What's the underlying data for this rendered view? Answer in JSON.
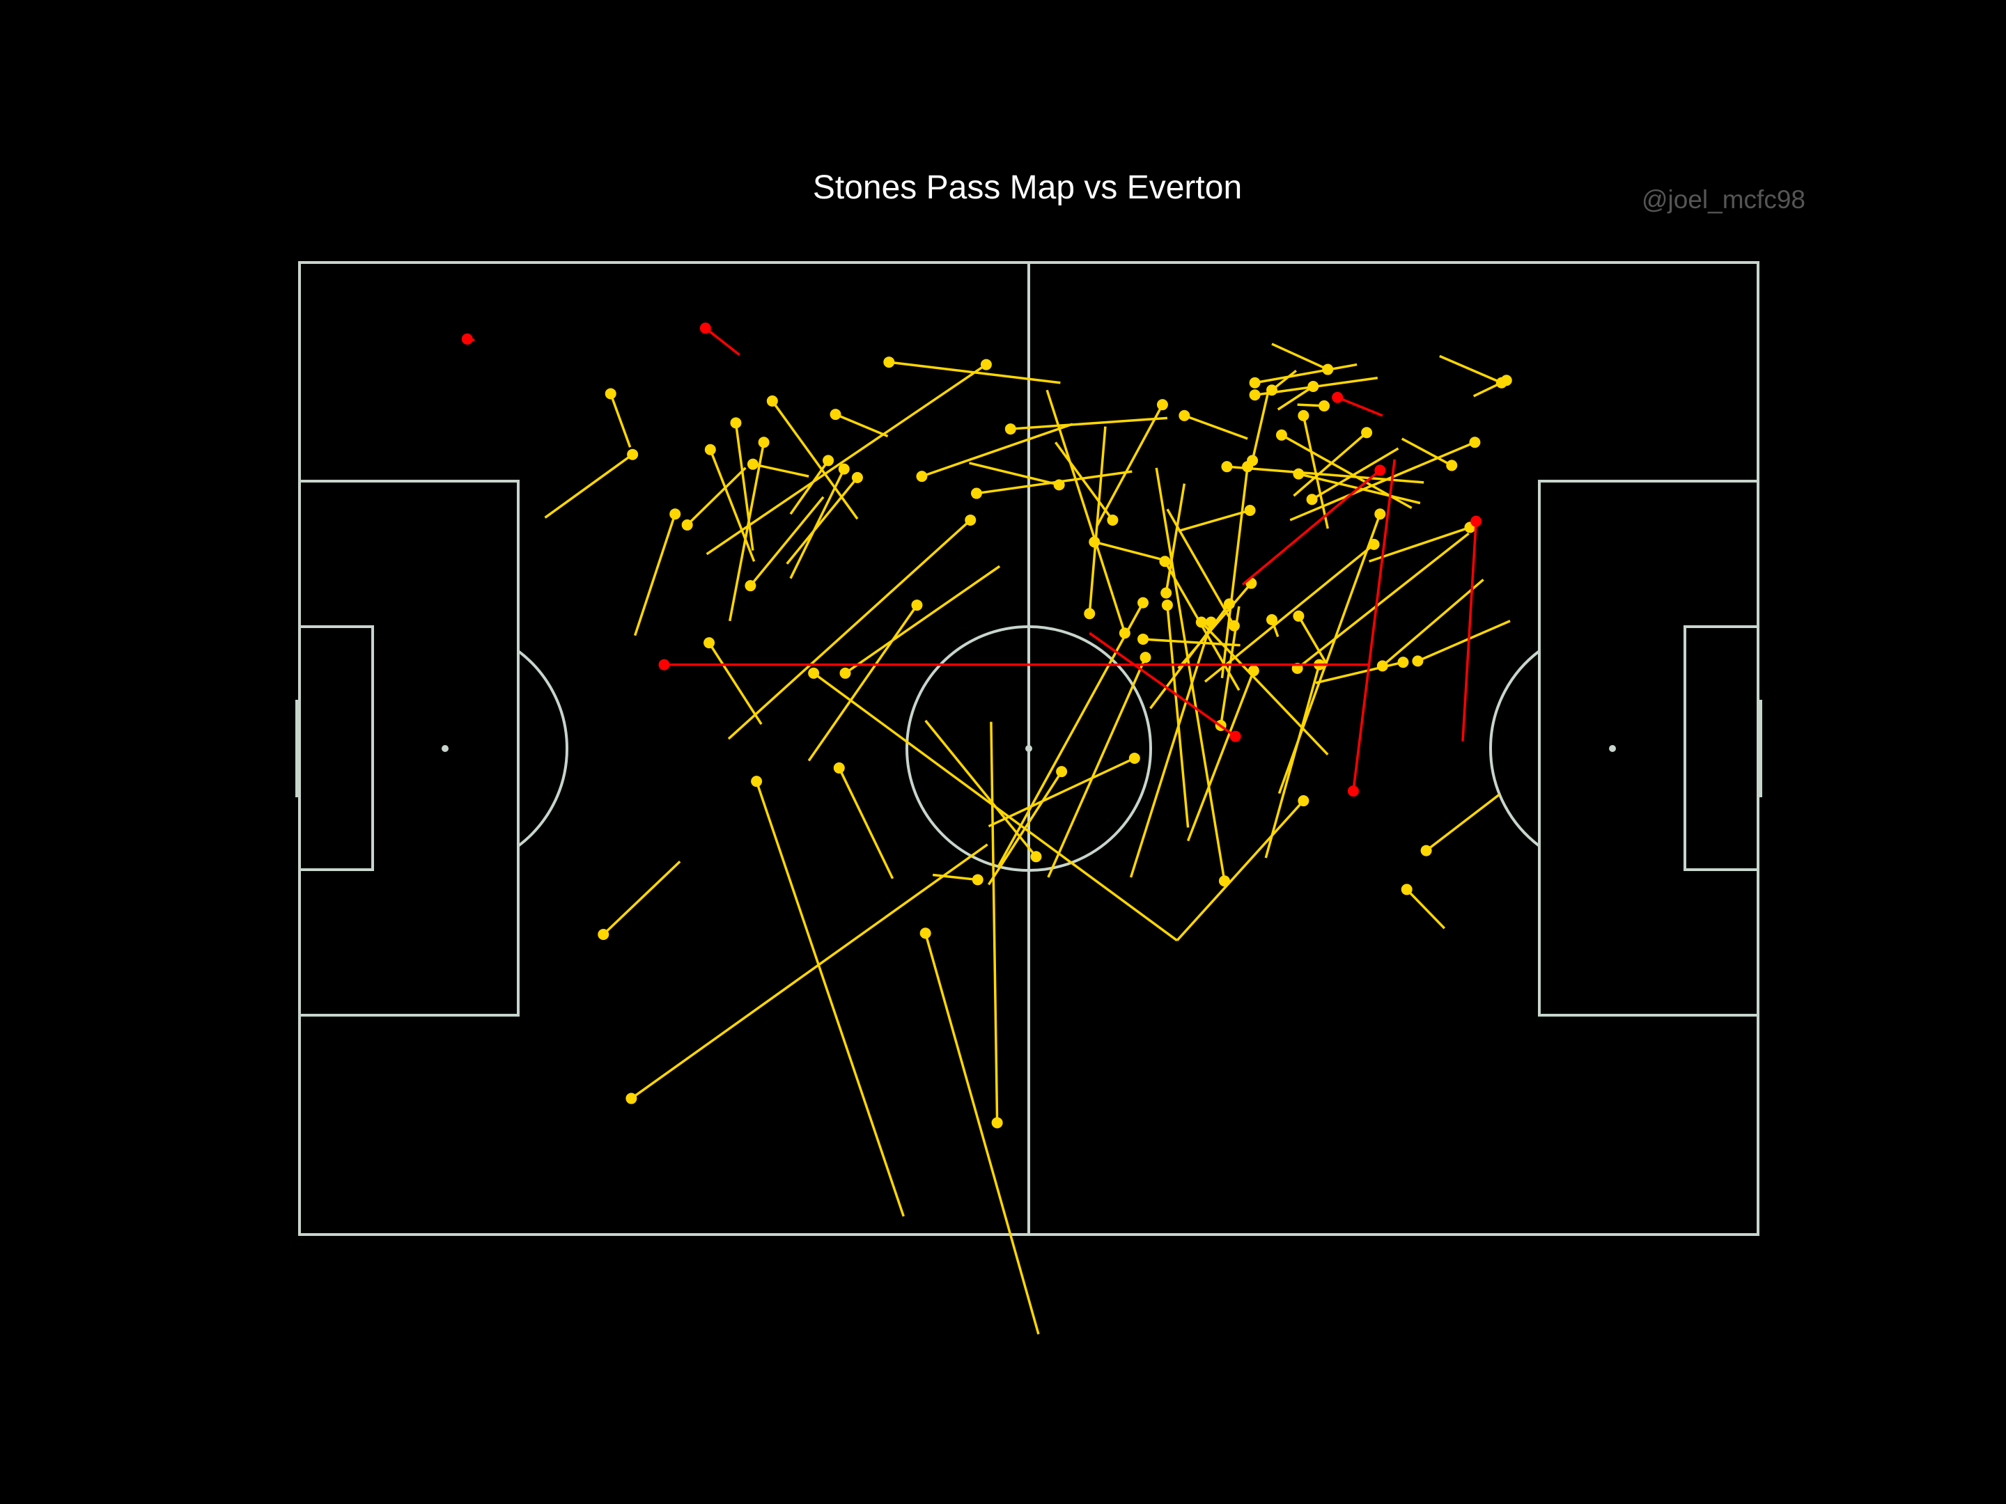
{
  "header": {
    "title": "Stones Pass Map vs Everton",
    "credit": "@joel_mcfc98"
  },
  "colors": {
    "background": "#000000",
    "pitch_lines": "#c7d5cc",
    "completed": "#FFD700",
    "incomplete": "#FF0000"
  },
  "chart_data": {
    "type": "scatter",
    "pitch": {
      "type": "statsbomb",
      "x_range": [
        0,
        120
      ],
      "y_range": [
        0,
        80
      ],
      "orientation": "horizontal"
    },
    "title": "Stones Pass Map vs Everton",
    "grid": false,
    "series": [
      {
        "outcome": "completed",
        "color": "#FFD700",
        "passes": [
          [
            37.6,
            42.7,
            49.7,
            78.5
          ],
          [
            27.3,
            68.8,
            56.6,
            47.9
          ],
          [
            42.3,
            33.8,
            72.2,
            55.8
          ],
          [
            51.5,
            55.2,
            60.8,
            88.2
          ],
          [
            25.0,
            55.3,
            31.3,
            49.3
          ],
          [
            57.4,
            70.8,
            56.9,
            37.8
          ],
          [
            67.9,
            30.5,
            61.5,
            10.5
          ],
          [
            65.0,
            28.9,
            66.3,
            13.5
          ],
          [
            76.1,
            50.9,
            70.5,
            16.9
          ],
          [
            75.8,
            38.1,
            77.3,
            28.3
          ],
          [
            74.2,
            29.6,
            84.6,
            40.5
          ],
          [
            83.9,
            33.1,
            79.5,
            49.0
          ],
          [
            69.6,
            32.5,
            61.6,
            50.6
          ],
          [
            82.6,
            44.3,
            72.2,
            55.8
          ],
          [
            91.1,
            51.6,
            94.2,
            54.8
          ],
          [
            76.5,
            28.1,
            70.0,
            36.7
          ],
          [
            88.4,
            23.2,
            74.5,
            34.5
          ],
          [
            88.9,
            20.7,
            80.6,
            43.7
          ],
          [
            92.7,
            48.4,
            98.7,
            43.8
          ],
          [
            90.8,
            32.9,
            83.6,
            34.6
          ],
          [
            71.2,
            24.6,
            77.3,
            35.2
          ],
          [
            60.6,
            48.9,
            51.5,
            37.7
          ],
          [
            75.0,
            29.6,
            68.4,
            50.6
          ],
          [
            62.7,
            41.9,
            56.7,
            51.2
          ],
          [
            68.7,
            40.8,
            56.7,
            46.4
          ],
          [
            71.4,
            28.2,
            73.1,
            46.5
          ],
          [
            78.5,
            33.6,
            73.1,
            47.6
          ],
          [
            69.4,
            28.0,
            57.5,
            49.7
          ],
          [
            55.8,
            50.8,
            52.1,
            50.4
          ],
          [
            50.8,
            28.2,
            41.9,
            41.0
          ],
          [
            37.3,
            16.6,
            41.9,
            17.6
          ],
          [
            44.4,
            41.6,
            48.8,
            50.7
          ],
          [
            38.9,
            11.4,
            45.9,
            21.1
          ],
          [
            35.9,
            13.2,
            37.3,
            23.7
          ],
          [
            31.9,
            21.6,
            36.7,
            16.9
          ],
          [
            27.4,
            15.8,
            20.2,
            21.0
          ],
          [
            33.7,
            31.3,
            38.0,
            38.0
          ],
          [
            33.8,
            15.4,
            37.4,
            24.6
          ],
          [
            38.2,
            14.8,
            35.4,
            29.5
          ],
          [
            44.9,
            33.8,
            57.6,
            25.0
          ],
          [
            30.9,
            20.7,
            27.6,
            30.7
          ],
          [
            25.6,
            10.8,
            27.2,
            15.2
          ],
          [
            37.1,
            26.6,
            43.1,
            19.3
          ],
          [
            55.2,
            21.2,
            35.3,
            39.2
          ],
          [
            43.5,
            16.3,
            40.4,
            20.7
          ],
          [
            44.8,
            17.0,
            40.4,
            26.0
          ],
          [
            44.1,
            12.5,
            48.4,
            14.3
          ],
          [
            48.5,
            8.2,
            62.6,
            9.9
          ],
          [
            55.7,
            19.0,
            68.5,
            17.2
          ],
          [
            56.5,
            8.4,
            33.5,
            24.0
          ],
          [
            62.5,
            18.3,
            55.1,
            16.5
          ],
          [
            51.2,
            17.6,
            63.6,
            13.3
          ],
          [
            45.9,
            17.7,
            40.1,
            24.8
          ],
          [
            78.3,
            26.4,
            72.3,
            33.4
          ],
          [
            78.2,
            20.4,
            72.3,
            22.1
          ],
          [
            89.1,
            33.2,
            97.4,
            26.1
          ],
          [
            82.1,
            33.4,
            96.2,
            22.3
          ],
          [
            80.8,
            14.2,
            91.5,
            20.2
          ],
          [
            71.3,
            27.2,
            72.8,
            18.2
          ],
          [
            69.4,
            31.0,
            77.4,
            31.5
          ],
          [
            96.3,
            21.8,
            88.0,
            24.6
          ],
          [
            80.0,
            29.4,
            80.5,
            30.8
          ],
          [
            92.0,
            32.8,
            99.6,
            29.5
          ],
          [
            76.9,
            29.9,
            71.4,
            20.3
          ],
          [
            65.4,
            23.0,
            70.8,
            24.4
          ],
          [
            82.2,
            29.1,
            84.6,
            33.2
          ],
          [
            78.0,
            16.8,
            75.9,
            34.2
          ],
          [
            82.6,
            12.6,
            84.6,
            21.9
          ],
          [
            71.0,
            11.7,
            65.6,
            21.7
          ],
          [
            66.9,
            21.2,
            62.2,
            14.8
          ],
          [
            58.5,
            13.7,
            71.4,
            12.8
          ],
          [
            82.2,
            17.4,
            92.2,
            19.8
          ],
          [
            83.3,
            19.5,
            90.4,
            15.3
          ],
          [
            76.3,
            16.8,
            92.5,
            18.1
          ],
          [
            78.4,
            16.3,
            79.8,
            10.2
          ],
          [
            83.4,
            10.2,
            80.5,
            12.1
          ],
          [
            78.6,
            10.9,
            88.7,
            9.5
          ],
          [
            80.0,
            10.5,
            82.0,
            8.9
          ],
          [
            78.6,
            9.9,
            87.0,
            8.4
          ],
          [
            72.8,
            12.6,
            78.0,
            14.5
          ],
          [
            96.7,
            14.8,
            81.5,
            21.2
          ],
          [
            98.9,
            9.9,
            93.8,
            7.7
          ],
          [
            94.8,
            16.7,
            90.7,
            14.5
          ],
          [
            99.3,
            9.7,
            96.6,
            11.0
          ],
          [
            87.8,
            14.0,
            81.8,
            19.2
          ],
          [
            84.6,
            8.8,
            80.0,
            6.7
          ],
          [
            84.3,
            11.8,
            82.1,
            11.7
          ]
        ]
      },
      {
        "outcome": "incomplete",
        "color": "#FF0000",
        "passes": [
          [
            13.8,
            6.3,
            14.4,
            6.4
          ],
          [
            30.0,
            33.1,
            88.1,
            33.1
          ],
          [
            33.4,
            5.4,
            36.2,
            7.6
          ],
          [
            86.7,
            43.5,
            90.1,
            16.2
          ],
          [
            96.8,
            21.3,
            95.7,
            39.4
          ],
          [
            77.0,
            39.0,
            65.0,
            30.5
          ],
          [
            88.9,
            17.1,
            77.6,
            26.5
          ],
          [
            85.4,
            11.1,
            89.1,
            12.6
          ]
        ]
      }
    ]
  }
}
